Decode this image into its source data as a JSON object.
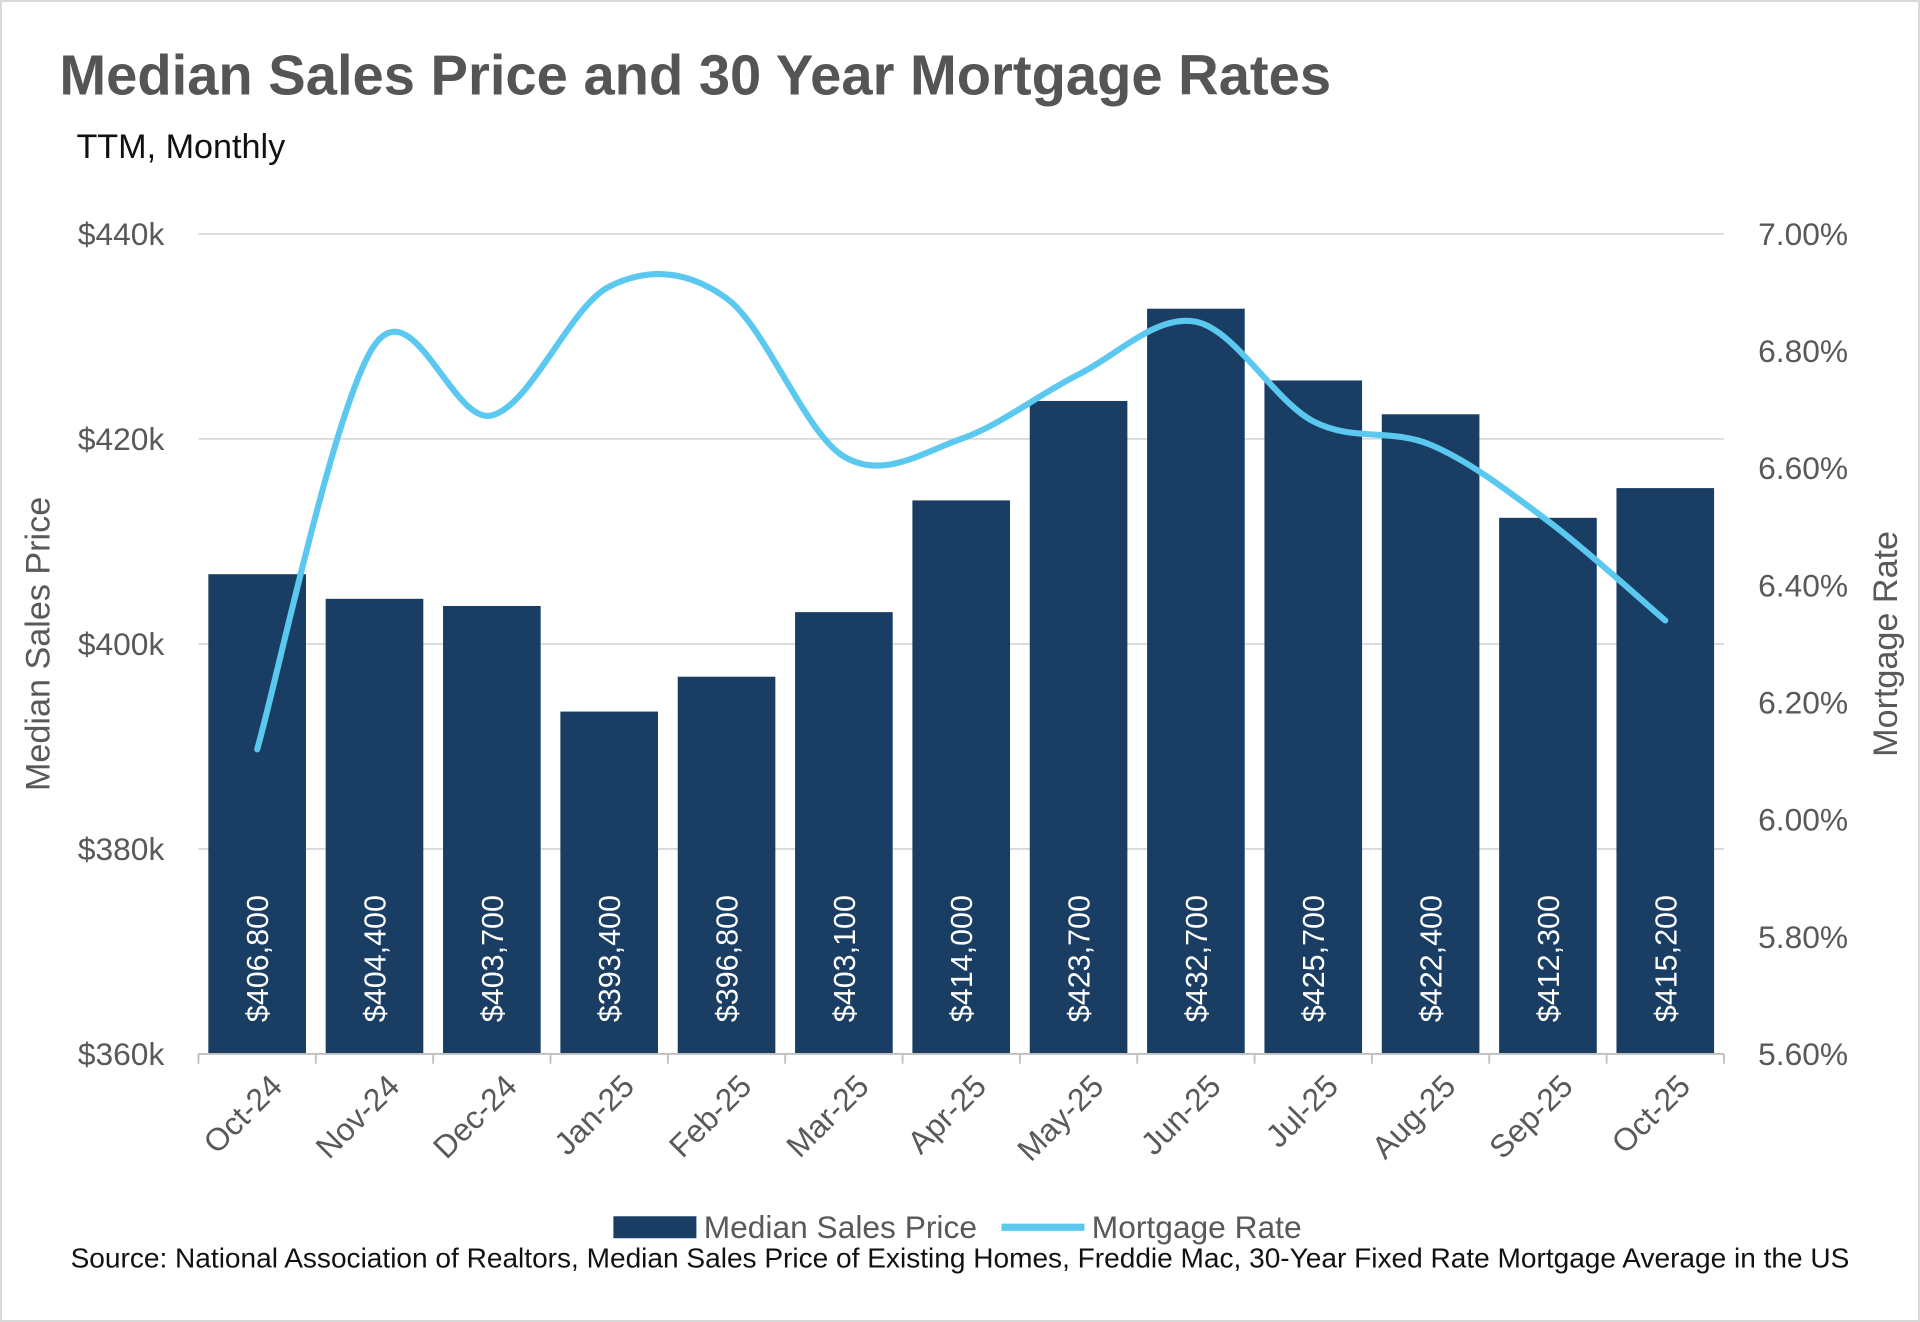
{
  "chart_data": {
    "type": "bar+line",
    "title": "Median Sales Price and 30 Year Mortgage Rates",
    "subtitle": "TTM, Monthly",
    "ylabel_left": "Median Sales Price",
    "ylabel_right": "Mortgage Rate",
    "ylim_left": [
      360000,
      440000
    ],
    "yticks_left": [
      "$360k",
      "$380k",
      "$400k",
      "$420k",
      "$440k"
    ],
    "ylim_right": [
      5.6,
      7.0
    ],
    "yticks_right": [
      "5.60%",
      "5.80%",
      "6.00%",
      "6.20%",
      "6.40%",
      "6.60%",
      "6.80%",
      "7.00%"
    ],
    "categories": [
      "Oct-24",
      "Nov-24",
      "Dec-24",
      "Jan-25",
      "Feb-25",
      "Mar-25",
      "Apr-25",
      "May-25",
      "Jun-25",
      "Jul-25",
      "Aug-25",
      "Sep-25",
      "Oct-25"
    ],
    "series": [
      {
        "name": "Median Sales Price",
        "type": "bar",
        "color": "#1a3d63",
        "axis": "left",
        "values": [
          406800,
          404400,
          403700,
          393400,
          396800,
          403100,
          414000,
          423700,
          432700,
          425700,
          422400,
          412300,
          415200
        ],
        "labels": [
          "$406,800",
          "$404,400",
          "$403,700",
          "$393,400",
          "$396,800",
          "$403,100",
          "$414,000",
          "$423,700",
          "$432,700",
          "$425,700",
          "$422,400",
          "$412,300",
          "$415,200"
        ]
      },
      {
        "name": "Mortgage Rate",
        "type": "line",
        "smooth": true,
        "color": "#5bc8f0",
        "axis": "right",
        "values": [
          6.12,
          6.81,
          6.69,
          6.91,
          6.89,
          6.62,
          6.65,
          6.76,
          6.85,
          6.68,
          6.64,
          6.51,
          6.34
        ]
      }
    ],
    "grid": "horizontal",
    "legend": "bottom",
    "source": "Source: National Association of Realtors, Median Sales Price of Existing Homes, Freddie Mac, 30-Year Fixed Rate Mortgage Average in the US"
  }
}
